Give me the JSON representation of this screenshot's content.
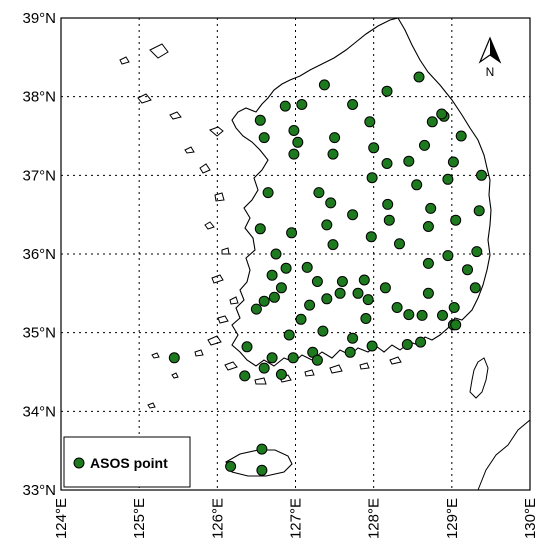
{
  "map": {
    "lon_range": [
      124,
      130
    ],
    "lat_range": [
      33,
      39
    ],
    "lon_ticks": [
      "124°E",
      "125°E",
      "126°E",
      "127°E",
      "128°E",
      "129°E",
      "130°E"
    ],
    "lat_ticks": [
      "33°N",
      "34°N",
      "35°N",
      "36°N",
      "37°N",
      "38°N",
      "39°N"
    ],
    "grid": "dotted",
    "north_arrow_label": "N",
    "legend_label": "ASOS point",
    "legend_placement": "bottom-left",
    "marker_color": "#1e7a1e",
    "coast_color": "#000000"
  },
  "stations": [
    [
      127.37,
      38.15
    ],
    [
      128.17,
      38.07
    ],
    [
      128.58,
      38.25
    ],
    [
      126.55,
      37.7
    ],
    [
      126.87,
      37.88
    ],
    [
      127.08,
      37.9
    ],
    [
      127.73,
      37.9
    ],
    [
      126.6,
      37.48
    ],
    [
      126.98,
      37.57
    ],
    [
      127.03,
      37.42
    ],
    [
      126.98,
      37.27
    ],
    [
      127.5,
      37.48
    ],
    [
      127.48,
      37.27
    ],
    [
      127.95,
      37.68
    ],
    [
      128.0,
      37.35
    ],
    [
      128.17,
      37.15
    ],
    [
      128.45,
      37.18
    ],
    [
      128.75,
      37.68
    ],
    [
      128.9,
      37.75
    ],
    [
      128.87,
      37.78
    ],
    [
      129.12,
      37.5
    ],
    [
      128.65,
      37.38
    ],
    [
      129.02,
      37.17
    ],
    [
      126.65,
      36.78
    ],
    [
      127.3,
      36.78
    ],
    [
      127.45,
      36.65
    ],
    [
      127.73,
      36.5
    ],
    [
      127.98,
      36.97
    ],
    [
      128.18,
      36.63
    ],
    [
      128.55,
      36.88
    ],
    [
      128.73,
      36.58
    ],
    [
      128.95,
      36.95
    ],
    [
      129.38,
      37.0
    ],
    [
      129.05,
      36.43
    ],
    [
      129.35,
      36.55
    ],
    [
      127.4,
      36.37
    ],
    [
      127.48,
      36.12
    ],
    [
      127.97,
      36.22
    ],
    [
      128.2,
      36.43
    ],
    [
      128.33,
      36.13
    ],
    [
      128.7,
      36.35
    ],
    [
      126.55,
      36.32
    ],
    [
      126.95,
      36.27
    ],
    [
      126.75,
      36.0
    ],
    [
      126.7,
      35.73
    ],
    [
      126.88,
      35.82
    ],
    [
      127.15,
      35.83
    ],
    [
      127.6,
      35.65
    ],
    [
      127.88,
      35.67
    ],
    [
      128.15,
      35.57
    ],
    [
      128.7,
      35.88
    ],
    [
      128.95,
      35.98
    ],
    [
      129.32,
      36.03
    ],
    [
      129.2,
      35.8
    ],
    [
      129.3,
      35.57
    ],
    [
      126.6,
      35.4
    ],
    [
      126.82,
      35.57
    ],
    [
      126.73,
      35.45
    ],
    [
      126.5,
      35.3
    ],
    [
      127.28,
      35.65
    ],
    [
      127.4,
      35.43
    ],
    [
      127.18,
      35.35
    ],
    [
      127.8,
      35.5
    ],
    [
      127.93,
      35.42
    ],
    [
      128.3,
      35.32
    ],
    [
      128.45,
      35.23
    ],
    [
      128.7,
      35.5
    ],
    [
      128.62,
      35.22
    ],
    [
      128.88,
      35.22
    ],
    [
      129.03,
      35.32
    ],
    [
      129.02,
      35.1
    ],
    [
      127.07,
      35.17
    ],
    [
      127.35,
      35.02
    ],
    [
      127.9,
      35.18
    ],
    [
      127.57,
      35.5
    ],
    [
      126.38,
      34.82
    ],
    [
      126.7,
      34.68
    ],
    [
      126.92,
      34.97
    ],
    [
      127.22,
      34.75
    ],
    [
      127.28,
      34.65
    ],
    [
      127.73,
      34.93
    ],
    [
      127.7,
      34.75
    ],
    [
      127.98,
      34.83
    ],
    [
      128.43,
      34.85
    ],
    [
      128.6,
      34.88
    ],
    [
      129.05,
      35.1
    ],
    [
      126.82,
      34.47
    ],
    [
      126.97,
      34.68
    ],
    [
      126.35,
      34.45
    ],
    [
      126.6,
      34.55
    ],
    [
      125.45,
      34.68
    ],
    [
      126.57,
      33.52
    ],
    [
      126.17,
      33.3
    ],
    [
      126.57,
      33.25
    ]
  ]
}
